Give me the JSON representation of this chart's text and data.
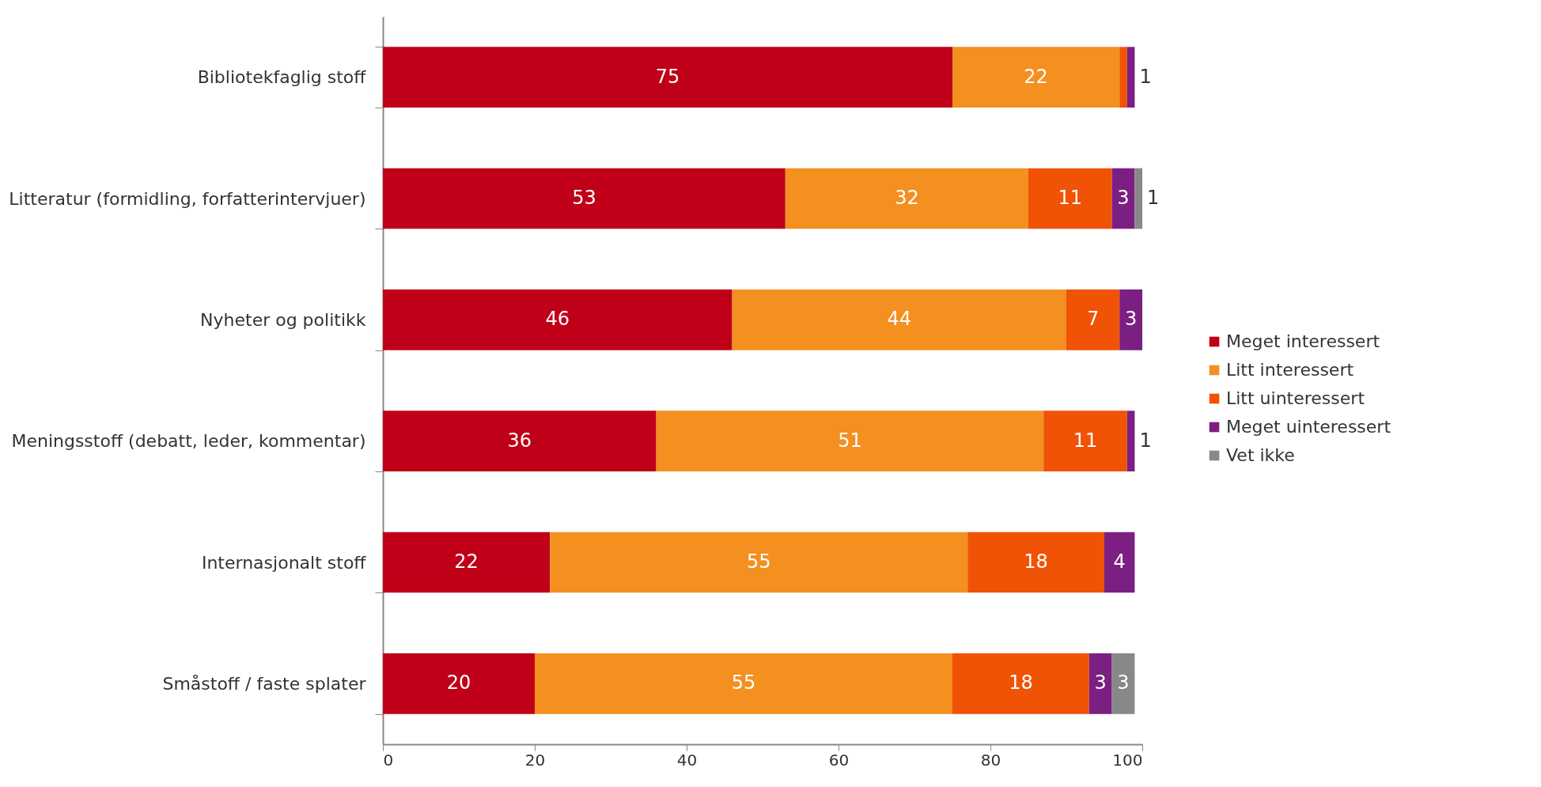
{
  "chart_data": {
    "type": "bar",
    "orientation": "horizontal",
    "stacked": true,
    "legend": "right",
    "grid": false,
    "categories": [
      "Bibliotekfaglig stoff",
      "Litteratur (formidling, forfatterintervjuer)",
      "Nyheter og politikk",
      "Meningsstoff (debatt, leder, kommentar)",
      "Internasjonalt stoff",
      "Småstoff / faste splater"
    ],
    "series": [
      {
        "name": "Meget interessert",
        "color": "#c00018",
        "values": [
          75,
          53,
          46,
          36,
          22,
          20
        ],
        "value_labels": [
          "75",
          "53",
          "46",
          "36",
          "22",
          "20"
        ]
      },
      {
        "name": "Litt interessert",
        "color": "#f39020",
        "values": [
          22,
          32,
          44,
          51,
          55,
          55
        ],
        "value_labels": [
          "22",
          "32",
          "44",
          "51",
          "55",
          "55"
        ]
      },
      {
        "name": "Litt uinteressert",
        "color": "#f05206",
        "values": [
          1,
          11,
          7,
          11,
          18,
          18
        ],
        "value_labels": [
          null,
          "11",
          "7",
          "11",
          "18",
          "18"
        ]
      },
      {
        "name": "Meget uinteressert",
        "color": "#7b1f82",
        "values": [
          1,
          3,
          3,
          1,
          4,
          3
        ],
        "value_labels": [
          "1",
          "3",
          "3",
          "1",
          "4",
          "3"
        ]
      },
      {
        "name": "Vet ikke",
        "color": "#888888",
        "values": [
          0,
          1,
          null,
          0,
          0,
          3
        ],
        "value_labels": [
          null,
          "1",
          null,
          null,
          null,
          "3"
        ]
      }
    ],
    "xlim": [
      0,
      100
    ],
    "xticks": [
      0,
      20,
      40,
      60,
      80,
      100
    ]
  }
}
